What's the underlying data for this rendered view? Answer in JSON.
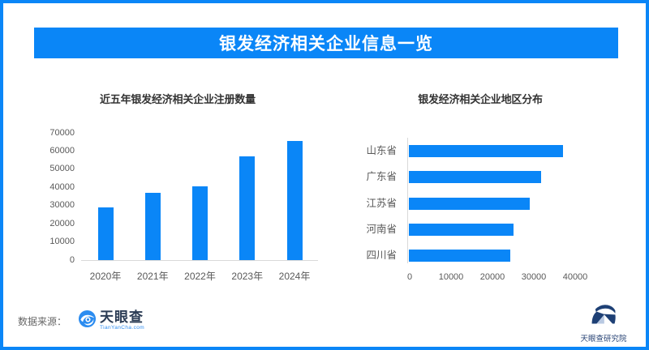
{
  "page": {
    "accent_color": "#0a86f7",
    "axis_color": "#d9d9d9",
    "background": "#ffffff"
  },
  "header": {
    "title": "银发经济相关企业信息一览",
    "bg_color": "#0a86f7",
    "text_color": "#ffffff"
  },
  "chart_data": [
    {
      "type": "bar",
      "title": "近五年银发经济相关企业注册数量",
      "categories": [
        "2020年",
        "2021年",
        "2022年",
        "2023年",
        "2024年"
      ],
      "values": [
        28900,
        37100,
        40500,
        56900,
        65700
      ],
      "xlabel": "",
      "ylabel": "",
      "ylim": [
        0,
        70000
      ],
      "yticks": [
        0,
        10000,
        20000,
        30000,
        40000,
        50000,
        60000,
        70000
      ],
      "grid": false,
      "legend": "none",
      "bar_color": "#0a86f7"
    },
    {
      "type": "bar-horizontal",
      "title": "银发经济相关企业地区分布",
      "categories": [
        "山东省",
        "广东省",
        "江苏省",
        "河南省",
        "四川省"
      ],
      "values": [
        37300,
        32000,
        29200,
        25200,
        24500
      ],
      "xlabel": "",
      "ylabel": "",
      "xlim": [
        0,
        50000
      ],
      "xticks": [
        0,
        10000,
        20000,
        30000,
        40000
      ],
      "grid": false,
      "legend": "none",
      "bar_color": "#0a86f7"
    }
  ],
  "footer": {
    "source_label": "数据来源：",
    "logo": {
      "text": "天眼查",
      "sub": "TianYanCha.com"
    },
    "right_logo": {
      "text": "天眼查研究院"
    }
  }
}
